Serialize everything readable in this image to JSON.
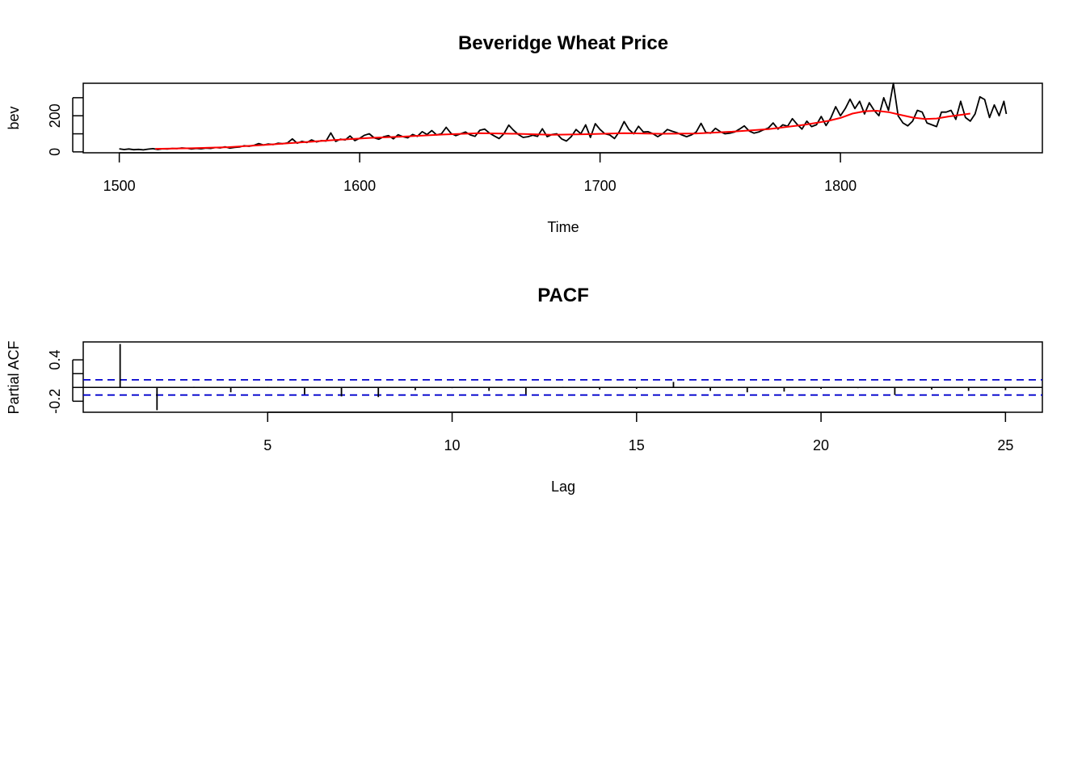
{
  "chart_data": [
    {
      "type": "line",
      "title": "Beveridge Wheat Price",
      "xlabel": "Time",
      "ylabel": "bev",
      "xlim": [
        1485,
        1884
      ],
      "ylim": [
        -5,
        380
      ],
      "xticks": [
        1500,
        1600,
        1700,
        1800
      ],
      "yticks": [
        0,
        200
      ],
      "minor_yticks": [
        0,
        100,
        200,
        300
      ],
      "colors": {
        "series": "#000000",
        "smooth": "#ff0000"
      },
      "series": [
        {
          "kind": "observed",
          "x": [
            1500,
            1502,
            1504,
            1506,
            1508,
            1510,
            1512,
            1514,
            1516,
            1518,
            1520,
            1522,
            1524,
            1526,
            1528,
            1530,
            1532,
            1534,
            1536,
            1538,
            1540,
            1542,
            1544,
            1546,
            1548,
            1550,
            1552,
            1554,
            1556,
            1558,
            1560,
            1562,
            1564,
            1566,
            1568,
            1570,
            1572,
            1574,
            1576,
            1578,
            1580,
            1582,
            1584,
            1586,
            1588,
            1590,
            1592,
            1594,
            1596,
            1598,
            1600,
            1602,
            1604,
            1606,
            1608,
            1610,
            1612,
            1614,
            1616,
            1618,
            1620,
            1622,
            1624,
            1626,
            1628,
            1630,
            1632,
            1634,
            1636,
            1638,
            1640,
            1642,
            1644,
            1646,
            1648,
            1650,
            1652,
            1654,
            1656,
            1658,
            1660,
            1662,
            1664,
            1666,
            1668,
            1670,
            1672,
            1674,
            1676,
            1678,
            1680,
            1682,
            1684,
            1686,
            1688,
            1690,
            1692,
            1694,
            1696,
            1698,
            1700,
            1702,
            1704,
            1706,
            1708,
            1710,
            1712,
            1714,
            1716,
            1718,
            1720,
            1722,
            1724,
            1726,
            1728,
            1730,
            1732,
            1734,
            1736,
            1738,
            1740,
            1742,
            1744,
            1746,
            1748,
            1750,
            1752,
            1754,
            1756,
            1758,
            1760,
            1762,
            1764,
            1766,
            1768,
            1770,
            1772,
            1774,
            1776,
            1778,
            1780,
            1782,
            1784,
            1786,
            1788,
            1790,
            1792,
            1794,
            1796,
            1798,
            1800,
            1802,
            1804,
            1806,
            1808,
            1810,
            1812,
            1814,
            1816,
            1818,
            1820,
            1822,
            1824,
            1826,
            1828,
            1830,
            1832,
            1834,
            1836,
            1838,
            1840,
            1842,
            1844,
            1846,
            1848,
            1850,
            1852,
            1854,
            1856,
            1858,
            1860,
            1862,
            1864,
            1866,
            1868,
            1869
          ],
          "y": [
            17,
            13,
            16,
            12,
            14,
            11,
            15,
            18,
            13,
            17,
            16,
            19,
            18,
            22,
            20,
            16,
            19,
            17,
            21,
            19,
            24,
            22,
            28,
            21,
            25,
            27,
            34,
            31,
            36,
            46,
            38,
            44,
            40,
            48,
            45,
            50,
            72,
            48,
            58,
            52,
            66,
            55,
            62,
            60,
            105,
            58,
            70,
            66,
            88,
            62,
            75,
            92,
            100,
            78,
            70,
            84,
            90,
            72,
            95,
            84,
            78,
            96,
            86,
            112,
            96,
            118,
            94,
            100,
            136,
            102,
            90,
            100,
            110,
            94,
            86,
            120,
            126,
            104,
            88,
            74,
            100,
            148,
            120,
            96,
            80,
            84,
            92,
            86,
            128,
            84,
            96,
            100,
            72,
            60,
            84,
            124,
            100,
            150,
            80,
            156,
            124,
            100,
            94,
            74,
            112,
            168,
            124,
            100,
            142,
            110,
            112,
            100,
            84,
            100,
            124,
            114,
            106,
            94,
            84,
            94,
            110,
            158,
            108,
            104,
            130,
            112,
            100,
            104,
            110,
            126,
            144,
            116,
            104,
            110,
            122,
            132,
            160,
            126,
            150,
            142,
            184,
            152,
            126,
            170,
            140,
            150,
            196,
            146,
            188,
            250,
            200,
            240,
            292,
            240,
            280,
            210,
            272,
            230,
            200,
            300,
            230,
            380,
            200,
            160,
            144,
            170,
            230,
            220,
            160,
            150,
            140,
            220,
            220,
            230,
            180,
            280,
            190,
            170,
            210,
            305,
            290,
            190,
            260,
            200,
            280,
            210
          ]
        },
        {
          "kind": "smoothed",
          "x": [
            1515,
            1530,
            1545,
            1560,
            1575,
            1590,
            1605,
            1620,
            1635,
            1650,
            1665,
            1680,
            1695,
            1710,
            1725,
            1740,
            1755,
            1770,
            1785,
            1795,
            1800,
            1805,
            1810,
            1815,
            1820,
            1825,
            1830,
            1835,
            1840,
            1845,
            1850,
            1854
          ],
          "y": [
            17,
            20,
            26,
            38,
            52,
            66,
            78,
            86,
            96,
            104,
            100,
            95,
            98,
            104,
            100,
            102,
            112,
            126,
            150,
            172,
            188,
            212,
            225,
            228,
            220,
            205,
            190,
            182,
            185,
            196,
            205,
            212
          ]
        }
      ]
    },
    {
      "type": "bar",
      "title": "PACF",
      "xlabel": "Lag",
      "ylabel": "Partial ACF",
      "xlim": [
        0,
        26
      ],
      "ylim": [
        -0.36,
        0.66
      ],
      "xticks": [
        5,
        10,
        15,
        20,
        25
      ],
      "yticks": [
        -0.2,
        0.4
      ],
      "minor_yticks": [
        -0.2,
        0,
        0.2,
        0.4
      ],
      "ci": 0.11,
      "colors": {
        "bars": "#000000",
        "ci": "#0000cd"
      },
      "lags": [
        1,
        2,
        3,
        4,
        5,
        6,
        7,
        8,
        9,
        10,
        11,
        12,
        13,
        14,
        15,
        16,
        17,
        18,
        19,
        20,
        21,
        22,
        23,
        24,
        25
      ],
      "values": [
        0.63,
        -0.33,
        0.01,
        -0.07,
        0.01,
        -0.1,
        -0.13,
        -0.14,
        -0.04,
        -0.01,
        -0.05,
        -0.1,
        0.01,
        -0.03,
        -0.02,
        0.08,
        -0.05,
        -0.07,
        -0.06,
        -0.02,
        -0.01,
        -0.11,
        -0.03,
        -0.05,
        -0.04
      ]
    }
  ]
}
